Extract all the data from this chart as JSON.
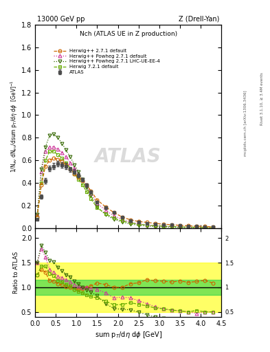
{
  "title_left": "13000 GeV pp",
  "title_right": "Z (Drell-Yan)",
  "plot_title": "Nch (ATLAS UE in Z production)",
  "ylabel_main": "1/N$_{ev}$ dN$_{ev}$/dsum p$_T$/dη dφ  [GeV]$^{-1}$",
  "ylabel_ratio": "Ratio to ATLAS",
  "xlabel": "sum p$_T$/dη dφ [GeV]",
  "rivet_label": "Rivet 3.1.10, ≥ 3.4M events",
  "arxiv_label": "[arXiv:1306.3436]",
  "mcplots_label": "mcplots.cern.ch",
  "xlim": [
    0,
    4.5
  ],
  "ylim_main": [
    0,
    1.8
  ],
  "ylim_ratio": [
    0.4,
    2.2
  ],
  "atlas_x": [
    0.05,
    0.15,
    0.25,
    0.35,
    0.45,
    0.55,
    0.65,
    0.75,
    0.85,
    0.95,
    1.05,
    1.15,
    1.25,
    1.35,
    1.5,
    1.7,
    1.9,
    2.1,
    2.3,
    2.5,
    2.7,
    2.9,
    3.1,
    3.3,
    3.5,
    3.7,
    3.9,
    4.1,
    4.3
  ],
  "atlas_y": [
    0.08,
    0.28,
    0.42,
    0.53,
    0.55,
    0.57,
    0.56,
    0.55,
    0.52,
    0.5,
    0.47,
    0.43,
    0.38,
    0.32,
    0.23,
    0.18,
    0.14,
    0.1,
    0.07,
    0.055,
    0.045,
    0.038,
    0.032,
    0.028,
    0.023,
    0.02,
    0.017,
    0.014,
    0.012
  ],
  "atlas_yerr": [
    0.008,
    0.02,
    0.025,
    0.025,
    0.025,
    0.025,
    0.025,
    0.025,
    0.022,
    0.02,
    0.018,
    0.016,
    0.014,
    0.012,
    0.009,
    0.007,
    0.005,
    0.004,
    0.003,
    0.003,
    0.002,
    0.002,
    0.002,
    0.002,
    0.002,
    0.002,
    0.001,
    0.001,
    0.001
  ],
  "herwig_x": [
    0.05,
    0.15,
    0.25,
    0.35,
    0.45,
    0.55,
    0.65,
    0.75,
    0.85,
    0.95,
    1.05,
    1.15,
    1.25,
    1.35,
    1.5,
    1.7,
    1.9,
    2.1,
    2.3,
    2.5,
    2.7,
    2.9,
    3.1,
    3.3,
    3.5,
    3.7,
    3.9,
    4.1,
    4.3
  ],
  "herwig271_y": [
    0.1,
    0.38,
    0.55,
    0.6,
    0.62,
    0.61,
    0.59,
    0.56,
    0.52,
    0.48,
    0.45,
    0.42,
    0.38,
    0.33,
    0.25,
    0.19,
    0.14,
    0.1,
    0.075,
    0.06,
    0.052,
    0.043,
    0.036,
    0.031,
    0.026,
    0.022,
    0.019,
    0.016,
    0.013
  ],
  "herwig271pow_y": [
    0.12,
    0.5,
    0.68,
    0.72,
    0.72,
    0.7,
    0.67,
    0.63,
    0.58,
    0.53,
    0.48,
    0.43,
    0.38,
    0.31,
    0.22,
    0.16,
    0.11,
    0.08,
    0.055,
    0.04,
    0.03,
    0.023,
    0.018,
    0.015,
    0.012,
    0.01,
    0.008,
    0.007,
    0.006
  ],
  "herwig271lhc_y": [
    0.12,
    0.52,
    0.72,
    0.82,
    0.83,
    0.8,
    0.75,
    0.69,
    0.63,
    0.56,
    0.5,
    0.43,
    0.36,
    0.29,
    0.19,
    0.12,
    0.08,
    0.055,
    0.038,
    0.027,
    0.02,
    0.015,
    0.012,
    0.01,
    0.008,
    0.007,
    0.006,
    0.005,
    0.004
  ],
  "herwig721_y": [
    0.1,
    0.4,
    0.6,
    0.68,
    0.68,
    0.65,
    0.62,
    0.58,
    0.53,
    0.48,
    0.43,
    0.38,
    0.32,
    0.26,
    0.18,
    0.13,
    0.09,
    0.065,
    0.048,
    0.036,
    0.028,
    0.022,
    0.018,
    0.015,
    0.012,
    0.01,
    0.009,
    0.007,
    0.006
  ],
  "color_atlas": "#4d4d4d",
  "color_herwig271": "#cc6600",
  "color_herwig271pow": "#cc3399",
  "color_herwig271lhc": "#336600",
  "color_herwig721": "#66aa00",
  "band_green_color": "#00cc44",
  "band_yellow_color": "#ffff00",
  "band_green_alpha": 0.5,
  "band_yellow_alpha": 0.6,
  "green_band_lo": 0.85,
  "green_band_hi": 1.15,
  "yellow_band_lo": 0.5,
  "yellow_band_hi": 1.5
}
